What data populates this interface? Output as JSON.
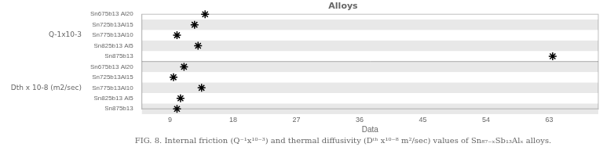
{
  "chart_data": {
    "type": "dot",
    "title": "Alloys",
    "x_label": "Data",
    "subtitle": "FIG. 8. Internal friction (Q⁻¹x¹⁰⁻³) and thermal diffusivity (Dᵗʰ x¹⁰⁻⁸ m²/sec) values of Sn₈₇₋ₓSb₁₃Alₓ alloys.",
    "groups": [
      {
        "name": "Q-1x10-3",
        "categories": [
          "Sn675b13 Al20",
          "Sn725b13Al15",
          "Sn775b13Al10",
          "Sn825b13 Al5",
          "Sn875b13"
        ],
        "values": [
          14.0,
          12.5,
          10.0,
          13.0,
          63.5
        ]
      },
      {
        "name": "Dth x 10-8 (m2/sec)",
        "categories": [
          "Sn675b13 Al20",
          "Sn725b13Al15",
          "Sn775b13Al10",
          "Sn825b13 Al5",
          "Sn875b13"
        ],
        "values": [
          11.0,
          9.5,
          13.5,
          10.5,
          10.0
        ]
      }
    ],
    "xlim": [
      5,
      70
    ],
    "xticks": [
      9,
      18,
      27,
      36,
      45,
      54,
      63
    ],
    "marker": "star",
    "color": "black",
    "grid": false
  }
}
